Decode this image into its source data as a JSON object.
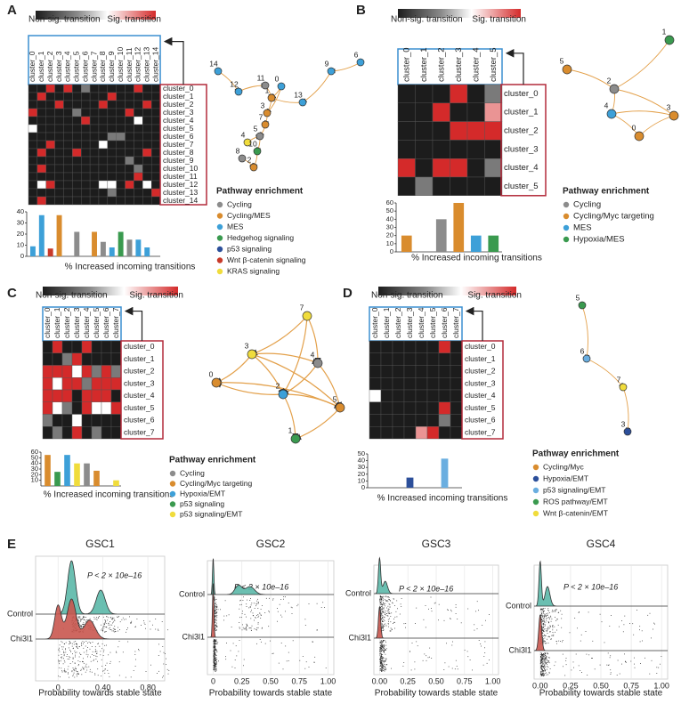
{
  "figure": {
    "panels": [
      {
        "letter": "A",
        "colorbar": [
          "Non-sig. transition",
          "Sig. transition"
        ],
        "clusters": [
          "cluster_0",
          "cluster_1",
          "cluster_2",
          "cluster_3",
          "cluster_4",
          "cluster_5",
          "cluster_6",
          "cluster_7",
          "cluster_8",
          "cluster_9",
          "cluster_10",
          "cluster_11",
          "cluster_12",
          "cluster_13",
          "cluster_14"
        ],
        "matrix": [
          [
            0,
            0,
            1,
            0,
            1,
            0,
            0.3,
            0,
            0,
            0,
            0,
            0,
            1,
            0,
            0
          ],
          [
            0,
            1,
            0,
            0,
            0,
            0,
            0,
            0,
            0,
            1,
            0,
            0,
            0,
            0,
            0
          ],
          [
            0,
            0,
            0,
            1,
            0,
            0,
            0,
            0,
            1,
            0,
            0,
            0,
            0,
            1,
            0
          ],
          [
            1,
            0,
            0,
            0,
            0,
            0.3,
            0,
            0,
            0,
            0,
            0,
            1,
            0,
            0,
            0
          ],
          [
            0,
            0,
            0,
            0,
            0,
            0,
            1,
            0,
            0,
            0,
            0,
            0,
            0.6,
            0,
            0
          ],
          [
            0.6,
            0,
            0,
            0,
            0,
            0,
            0,
            0,
            0,
            0,
            0,
            0,
            0,
            0,
            0
          ],
          [
            0,
            0,
            0,
            0,
            0,
            0,
            0,
            0,
            0,
            0.3,
            0.3,
            0,
            0,
            0,
            0
          ],
          [
            0,
            0,
            1,
            0,
            0,
            0,
            0,
            0,
            0.6,
            0,
            0,
            0,
            0,
            0,
            0
          ],
          [
            0,
            1,
            0,
            0,
            0,
            1,
            0,
            0,
            0,
            0,
            0,
            0,
            0,
            1,
            0
          ],
          [
            0,
            0,
            0,
            0,
            0,
            0,
            0,
            0,
            0,
            0,
            0,
            0.3,
            0,
            0,
            0
          ],
          [
            0,
            1,
            0,
            0,
            0,
            0,
            0,
            0,
            0,
            0,
            0,
            0,
            0.3,
            0,
            0
          ],
          [
            0,
            0,
            0,
            0,
            0,
            0,
            0,
            0,
            0,
            0,
            0,
            0,
            1,
            0,
            0
          ],
          [
            0,
            0.6,
            1,
            0,
            0,
            0,
            0,
            0,
            0.6,
            0.6,
            0,
            1,
            0,
            0.6,
            0
          ],
          [
            0,
            0,
            0,
            0,
            0,
            0,
            0,
            0,
            0,
            0.3,
            0,
            0,
            0,
            0,
            1
          ],
          [
            0,
            1,
            0,
            0,
            0,
            0,
            0,
            0,
            0,
            0,
            0,
            0,
            0,
            0,
            0
          ]
        ],
        "nodes": [
          {
            "label": "0",
            "color": "#3da0d8"
          },
          {
            "label": "1",
            "color": "#d98c2e"
          },
          {
            "label": "2",
            "color": "#d98c2e"
          },
          {
            "label": "3",
            "color": "#d98c2e"
          },
          {
            "label": "4",
            "color": "#f0dc3c"
          },
          {
            "label": "5",
            "color": "#8c8c8c"
          },
          {
            "label": "6",
            "color": "#3da0d8"
          },
          {
            "label": "7",
            "color": "#d98c2e"
          },
          {
            "label": "8",
            "color": "#8c8c8c"
          },
          {
            "label": "9",
            "color": "#3da0d8"
          },
          {
            "label": "10",
            "color": "#3a9a4f"
          },
          {
            "label": "11",
            "color": "#8c8c8c"
          },
          {
            "label": "12",
            "color": "#3da0d8"
          },
          {
            "label": "13",
            "color": "#3da0d8"
          },
          {
            "label": "14",
            "color": "#3da0d8"
          }
        ],
        "legend_title": "Pathway enrichment",
        "legend": [
          {
            "name": "Cycling",
            "color": "#8c8c8c"
          },
          {
            "name": "Cycling/MES",
            "color": "#d98c2e"
          },
          {
            "name": "MES",
            "color": "#3da0d8"
          },
          {
            "name": "Hedgehog signaling",
            "color": "#3a9a4f"
          },
          {
            "name": "p53 signaling",
            "color": "#2c4f9a"
          },
          {
            "name": "Wnt β-catenin signaling",
            "color": "#c83a2a"
          },
          {
            "name": "KRAS signaling",
            "color": "#f0dc3c"
          }
        ]
      },
      {
        "letter": "B",
        "colorbar": [
          "Non-sig. transition",
          "Sig. transition"
        ],
        "clusters": [
          "cluster_0",
          "cluster_1",
          "cluster_2",
          "cluster_3",
          "cluster_4",
          "cluster_5"
        ],
        "matrix": [
          [
            0,
            0,
            0,
            1,
            0,
            0.3
          ],
          [
            0,
            0,
            1,
            0,
            0,
            0.8
          ],
          [
            0,
            0,
            0,
            1,
            1,
            1
          ],
          [
            0,
            0,
            0,
            0,
            0,
            0
          ],
          [
            1,
            0,
            1,
            1,
            0,
            0.3
          ],
          [
            0,
            0.3,
            0,
            0,
            0,
            0
          ]
        ],
        "nodes": [
          {
            "label": "0",
            "color": "#d98c2e"
          },
          {
            "label": "1",
            "color": "#3a9a4f"
          },
          {
            "label": "2",
            "color": "#8c8c8c"
          },
          {
            "label": "3",
            "color": "#d98c2e"
          },
          {
            "label": "4",
            "color": "#3da0d8"
          },
          {
            "label": "5",
            "color": "#d98c2e"
          }
        ],
        "legend_title": "Pathway enrichment",
        "legend": [
          {
            "name": "Cycling",
            "color": "#8c8c8c"
          },
          {
            "name": "Cycling/Myc targeting",
            "color": "#d98c2e"
          },
          {
            "name": "MES",
            "color": "#3da0d8"
          },
          {
            "name": "Hypoxia/MES",
            "color": "#3a9a4f"
          }
        ]
      },
      {
        "letter": "C",
        "colorbar": [
          "Non-sig. transition",
          "Sig. transition"
        ],
        "clusters": [
          "cluster_0",
          "cluster_1",
          "cluster_2",
          "cluster_3",
          "cluster_4",
          "cluster_5",
          "cluster_6",
          "cluster_7"
        ],
        "matrix": [
          [
            0,
            1,
            0,
            0,
            1,
            0,
            0,
            0
          ],
          [
            0,
            0,
            0.3,
            1,
            0,
            0,
            0,
            0
          ],
          [
            1,
            1,
            1,
            0.6,
            1,
            0.3,
            1,
            0.3
          ],
          [
            1,
            0.6,
            1,
            1,
            0.3,
            1,
            1,
            1
          ],
          [
            1,
            1,
            1,
            0,
            1,
            1,
            1,
            0
          ],
          [
            1,
            0.6,
            0.3,
            0,
            1,
            0.6,
            0.6,
            1
          ],
          [
            0.3,
            0,
            0,
            0.6,
            0,
            0,
            0,
            0
          ],
          [
            0,
            0.3,
            0,
            1,
            0,
            0.3,
            0,
            0
          ]
        ],
        "nodes": [
          {
            "label": "0",
            "color": "#d98c2e"
          },
          {
            "label": "1",
            "color": "#3a9a4f"
          },
          {
            "label": "2",
            "color": "#3da0d8"
          },
          {
            "label": "3",
            "color": "#f0dc3c"
          },
          {
            "label": "4",
            "color": "#8c8c8c"
          },
          {
            "label": "5",
            "color": "#d98c2e"
          },
          {
            "label": "7",
            "color": "#f0dc3c"
          }
        ],
        "legend_title": "Pathway enrichment",
        "legend": [
          {
            "name": "Cycling",
            "color": "#8c8c8c"
          },
          {
            "name": "Cycling/Myc targeting",
            "color": "#d98c2e"
          },
          {
            "name": "Hypoxia/EMT",
            "color": "#3da0d8"
          },
          {
            "name": "p53 signaling",
            "color": "#3a9a4f"
          },
          {
            "name": "p53 signaling/EMT",
            "color": "#f0dc3c"
          }
        ]
      },
      {
        "letter": "D",
        "colorbar": [
          "Non-sig. transition",
          "Sig. transition"
        ],
        "clusters": [
          "cluster_0",
          "cluster_1",
          "cluster_2",
          "cluster_3",
          "cluster_4",
          "cluster_5",
          "cluster_6",
          "cluster_7"
        ],
        "matrix": [
          [
            0,
            0,
            0,
            0,
            0,
            0,
            1,
            0
          ],
          [
            0,
            0,
            0,
            0,
            0,
            0,
            0,
            0
          ],
          [
            0,
            0,
            0,
            0,
            0,
            0,
            0,
            0
          ],
          [
            0,
            0,
            0,
            0,
            0,
            0,
            0,
            0
          ],
          [
            0.6,
            0,
            0,
            0,
            0,
            0,
            0,
            0
          ],
          [
            0,
            0,
            0,
            0,
            0,
            0,
            1,
            0
          ],
          [
            0,
            0,
            0,
            0,
            0,
            0,
            0.3,
            0
          ],
          [
            0,
            0,
            0,
            0,
            0.8,
            1,
            0,
            0
          ]
        ],
        "nodes": [
          {
            "label": "3",
            "color": "#2c4f9a"
          },
          {
            "label": "5",
            "color": "#3a9a4f"
          },
          {
            "label": "6",
            "color": "#6aaee0"
          },
          {
            "label": "7",
            "color": "#f0dc3c"
          }
        ],
        "legend_title": "Pathway enrichment",
        "legend": [
          {
            "name": "Cycling/Myc",
            "color": "#d98c2e"
          },
          {
            "name": "Hypoxia/EMT",
            "color": "#2c4f9a"
          },
          {
            "name": "p53 signaling/EMT",
            "color": "#6aaee0"
          },
          {
            "name": "ROS pathway/EMT",
            "color": "#3a9a4f"
          },
          {
            "name": "Wnt β-catenin/EMT",
            "color": "#f0dc3c"
          }
        ]
      }
    ],
    "e_letter": "E"
  },
  "chart_data": [
    {
      "type": "bar",
      "xlabel": "% Increased incoming transitions",
      "values": [
        9,
        37,
        7,
        37,
        0,
        22,
        0,
        22,
        13,
        8,
        22,
        15,
        15,
        8,
        0
      ],
      "colors": [
        "#3da0d8",
        "#3da0d8",
        "#c83a2a",
        "#d98c2e",
        "#f0dc3c",
        "#8c8c8c",
        "#3da0d8",
        "#d98c2e",
        "#8c8c8c",
        "#3da0d8",
        "#3a9a4f",
        "#8c8c8c",
        "#3da0d8",
        "#3da0d8",
        "#3da0d8"
      ],
      "ylim": [
        0,
        40
      ],
      "yticks": [
        0,
        10,
        20,
        30,
        40
      ]
    },
    {
      "type": "bar",
      "xlabel": "% Increased incoming transitions",
      "values": [
        20,
        0,
        40,
        60,
        20,
        20
      ],
      "colors": [
        "#d98c2e",
        "#3a9a4f",
        "#8c8c8c",
        "#d98c2e",
        "#3da0d8",
        "#3a9a4f"
      ],
      "ylim": [
        0,
        60
      ],
      "yticks": [
        0,
        10,
        20,
        30,
        40,
        50,
        60
      ]
    },
    {
      "type": "bar",
      "xlabel": "% Increased incoming transitions",
      "values": [
        55,
        25,
        55,
        40,
        40,
        27,
        0,
        10
      ],
      "colors": [
        "#d98c2e",
        "#3a9a4f",
        "#3da0d8",
        "#f0dc3c",
        "#8c8c8c",
        "#d98c2e",
        "#8c8c8c",
        "#f0dc3c"
      ],
      "ylim": [
        0,
        60
      ],
      "yticks": [
        10,
        20,
        30,
        40,
        50,
        60
      ]
    },
    {
      "type": "bar",
      "xlabel": "% Increased incoming transitions",
      "values": [
        0,
        0,
        0,
        15,
        0,
        0,
        43,
        0
      ],
      "colors": [
        "#d98c2e",
        "#3a9a4f",
        "#3a9a4f",
        "#2c4f9a",
        "#3a9a4f",
        "#3a9a4f",
        "#6aaee0",
        "#f0dc3c"
      ],
      "ylim": [
        0,
        50
      ],
      "yticks": [
        0,
        10,
        20,
        30,
        40,
        50
      ]
    },
    {
      "type": "ridgeline",
      "title": "GSC1",
      "annotation": "P < 2 × 10e–16",
      "categories": [
        "Control",
        "Chi3l1"
      ],
      "xlabel": "Probability towards stable state",
      "xlim": [
        -0.2,
        0.95
      ],
      "xticks": [
        0,
        {
          "value": 0.4,
          "label": "0.40"
        },
        {
          "value": 0.8,
          "label": "0.80"
        }
      ]
    },
    {
      "type": "ridgeline",
      "title": "GSC2",
      "annotation": "P < 2 × 10e–16",
      "categories": [
        "Control",
        "Chi3l1"
      ],
      "xlabel": "Probability towards stable state",
      "xlim": [
        -0.05,
        1.05
      ],
      "xticks": [
        0,
        0.25,
        {
          "value": 0.5,
          "label": "0.50"
        },
        0.75,
        {
          "value": 1,
          "label": "1.00"
        }
      ]
    },
    {
      "type": "ridgeline",
      "title": "GSC3",
      "annotation": "P < 2 × 10e–16",
      "categories": [
        "Control",
        "Chi3l1"
      ],
      "xlabel": "Probability towards stable state",
      "xlim": [
        -0.05,
        1.05
      ],
      "xticks": [
        {
          "value": 0,
          "label": "0.00"
        },
        0.25,
        {
          "value": 0.5,
          "label": "0.50"
        },
        0.75,
        {
          "value": 1,
          "label": "1.00"
        }
      ]
    },
    {
      "type": "ridgeline",
      "title": "GSC4",
      "annotation": "P < 2 × 10e–16",
      "categories": [
        "Control",
        "Chi3l1"
      ],
      "xlabel": "Probability towards stable state",
      "xlim": [
        -0.05,
        1.05
      ],
      "xticks": [
        {
          "value": 0,
          "label": "0.00"
        },
        0.25,
        {
          "value": 0.5,
          "label": "0.50"
        },
        0.75,
        {
          "value": 1,
          "label": "1.00"
        }
      ]
    }
  ]
}
